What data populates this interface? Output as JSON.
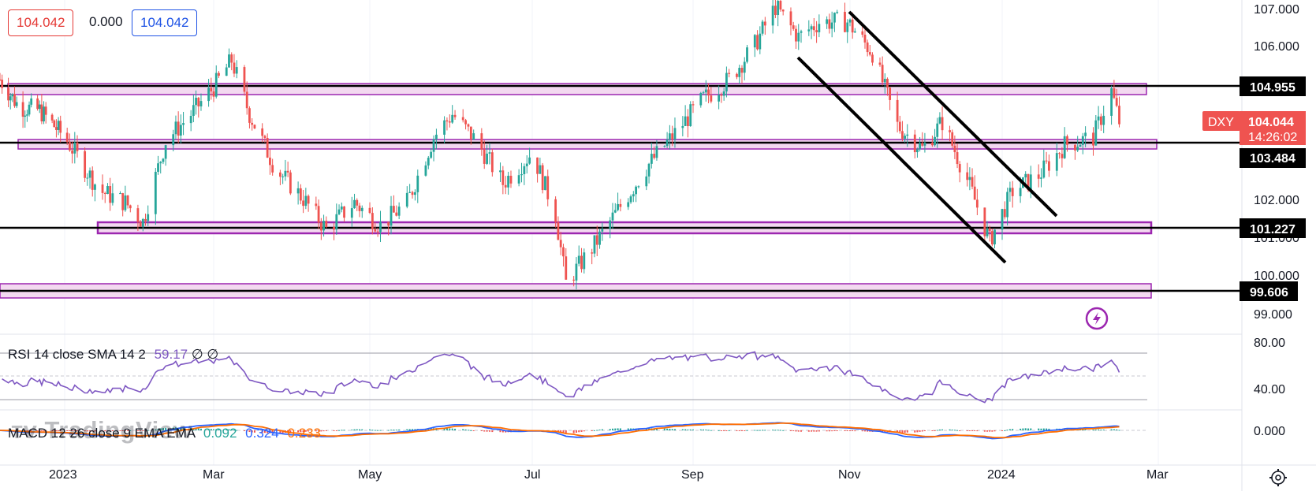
{
  "header": {
    "bid": "104.042",
    "spread": "0.000",
    "ask": "104.042",
    "bid_color": "#e53935",
    "ask_color": "#1e53e5"
  },
  "watermark": "TradingView",
  "symbol_badge": {
    "symbol": "DXY",
    "price": "104.044",
    "countdown": "14:26:02",
    "color": "#ef5350"
  },
  "lightning_icon": "lightning-icon",
  "settings_icon": "gear-icon",
  "price_axis": {
    "ticks": [
      "107.000",
      "106.000",
      "102.000",
      "101.000",
      "100.000",
      "99.000"
    ]
  },
  "level_labels": [
    "104.955",
    "103.484",
    "101.227",
    "99.606"
  ],
  "time_axis": {
    "labels": [
      "2023",
      "Mar",
      "May",
      "Jul",
      "Sep",
      "Nov",
      "2024",
      "Mar"
    ]
  },
  "rsi": {
    "title": "RSI 14 close SMA 14 2",
    "value": "59.17",
    "extra1": "∅",
    "extra2": "∅",
    "ticks": [
      "80.00",
      "40.00"
    ],
    "color": "#7e57c2"
  },
  "macd": {
    "title": "MACD 12 26 close 9 EMA EMA",
    "hist": "0.092",
    "macd": "0.324",
    "signal": "0.233",
    "tick": "0.000",
    "macd_color": "#2962ff",
    "signal_color": "#ff6d00",
    "hist_color": "#26a69a"
  },
  "chart_data": {
    "type": "candlestick",
    "symbol": "DXY",
    "x_labels": [
      "2023",
      "Mar",
      "May",
      "Jul",
      "Sep",
      "Nov",
      "2024",
      "Mar"
    ],
    "ylim": [
      98.6,
      107.2
    ],
    "horizontal_levels": [
      104.955,
      103.484,
      101.227,
      99.606
    ],
    "zones": [
      [
        104.7,
        105.0
      ],
      [
        103.3,
        103.55
      ],
      [
        100.95,
        101.27
      ],
      [
        99.4,
        99.78
      ]
    ],
    "channel_lines": [
      {
        "from": [
          "2023-10-26",
          107.0
        ],
        "to": [
          "2024-01-24",
          101.3
        ]
      },
      {
        "from": [
          "2023-10-05",
          105.5
        ],
        "to": [
          "2024-01-03",
          100.3
        ]
      }
    ],
    "close_points": [
      {
        "x": "2022-12-01",
        "y": 105.1
      },
      {
        "x": "2022-12-10",
        "y": 104.4
      },
      {
        "x": "2022-12-20",
        "y": 104.3
      },
      {
        "x": "2023-01-01",
        "y": 103.6
      },
      {
        "x": "2023-01-15",
        "y": 102.2
      },
      {
        "x": "2023-01-25",
        "y": 101.9
      },
      {
        "x": "2023-02-01",
        "y": 101.4
      },
      {
        "x": "2023-02-10",
        "y": 103.5
      },
      {
        "x": "2023-02-20",
        "y": 104.2
      },
      {
        "x": "2023-03-01",
        "y": 104.9
      },
      {
        "x": "2023-03-08",
        "y": 105.6
      },
      {
        "x": "2023-03-15",
        "y": 104.2
      },
      {
        "x": "2023-03-25",
        "y": 102.8
      },
      {
        "x": "2023-04-05",
        "y": 102.0
      },
      {
        "x": "2023-04-14",
        "y": 101.2
      },
      {
        "x": "2023-04-25",
        "y": 101.9
      },
      {
        "x": "2023-05-05",
        "y": 101.3
      },
      {
        "x": "2023-05-15",
        "y": 101.9
      },
      {
        "x": "2023-05-25",
        "y": 103.6
      },
      {
        "x": "2023-06-01",
        "y": 104.2
      },
      {
        "x": "2023-06-10",
        "y": 103.5
      },
      {
        "x": "2023-06-20",
        "y": 102.4
      },
      {
        "x": "2023-07-01",
        "y": 103.2
      },
      {
        "x": "2023-07-10",
        "y": 101.6
      },
      {
        "x": "2023-07-14",
        "y": 99.8
      },
      {
        "x": "2023-07-25",
        "y": 100.8
      },
      {
        "x": "2023-08-05",
        "y": 101.9
      },
      {
        "x": "2023-08-15",
        "y": 102.9
      },
      {
        "x": "2023-08-25",
        "y": 103.7
      },
      {
        "x": "2023-09-05",
        "y": 104.6
      },
      {
        "x": "2023-09-15",
        "y": 105.1
      },
      {
        "x": "2023-09-25",
        "y": 106.0
      },
      {
        "x": "2023-10-03",
        "y": 107.0
      },
      {
        "x": "2023-10-12",
        "y": 106.2
      },
      {
        "x": "2023-10-20",
        "y": 106.6
      },
      {
        "x": "2023-10-31",
        "y": 106.6
      },
      {
        "x": "2023-11-10",
        "y": 105.8
      },
      {
        "x": "2023-11-20",
        "y": 103.9
      },
      {
        "x": "2023-11-30",
        "y": 103.3
      },
      {
        "x": "2023-12-08",
        "y": 104.0
      },
      {
        "x": "2023-12-18",
        "y": 102.5
      },
      {
        "x": "2023-12-27",
        "y": 100.9
      },
      {
        "x": "2024-01-05",
        "y": 102.2
      },
      {
        "x": "2024-01-15",
        "y": 102.6
      },
      {
        "x": "2024-01-25",
        "y": 103.4
      },
      {
        "x": "2024-02-05",
        "y": 103.6
      },
      {
        "x": "2024-02-12",
        "y": 104.8
      },
      {
        "x": "2024-02-15",
        "y": 104.0
      }
    ]
  }
}
